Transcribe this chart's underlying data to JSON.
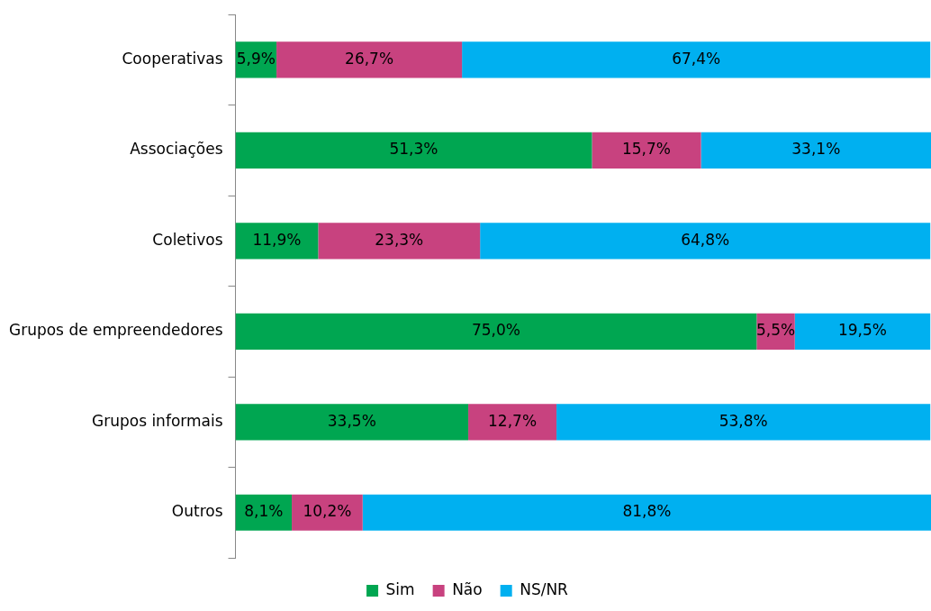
{
  "chart_data": {
    "type": "bar",
    "orientation": "horizontal",
    "stacked": true,
    "categories": [
      "Cooperativas",
      "Associações",
      "Coletivos",
      "Grupos de empreendedores",
      "Grupos informais",
      "Outros"
    ],
    "series": [
      {
        "name": "Sim",
        "color": "#00a651",
        "values": [
          5.9,
          51.3,
          11.9,
          75.0,
          33.5,
          8.1
        ],
        "value_labels": [
          "5,9%",
          "51,3%",
          "11,9%",
          "75,0%",
          "33,5%",
          "8,1%"
        ]
      },
      {
        "name": "Não",
        "color": "#c8427f",
        "values": [
          26.7,
          15.7,
          23.3,
          5.5,
          12.7,
          10.2
        ],
        "value_labels": [
          "26,7%",
          "15,7%",
          "23,3%",
          "5,5%",
          "12,7%",
          "10,2%"
        ]
      },
      {
        "name": "NS/NR",
        "color": "#00b0f0",
        "values": [
          67.4,
          33.1,
          64.8,
          19.5,
          53.8,
          81.8
        ],
        "value_labels": [
          "67,4%",
          "33,1%",
          "64,8%",
          "19,5%",
          "53,8%",
          "81,8%"
        ]
      }
    ],
    "xlim": [
      0,
      100.1
    ],
    "tick_labels": "y",
    "grid": false,
    "legend": "bottom"
  }
}
